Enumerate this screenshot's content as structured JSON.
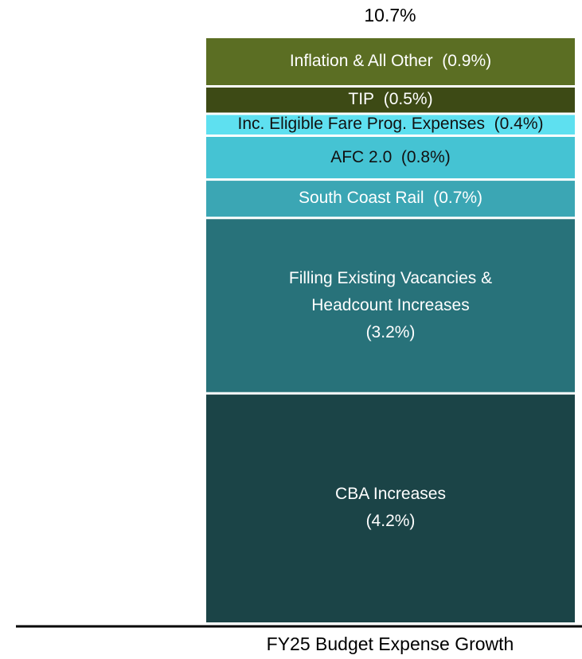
{
  "chart_data": {
    "type": "stacked_bar",
    "categories": [
      "FY25 Budget Expense Growth"
    ],
    "total_label": "10.7%",
    "ylim": [
      0,
      10.7
    ],
    "series": [
      {
        "name": "CBA Increases",
        "color": "#1b4447",
        "values": [
          4.2
        ],
        "value_labels": [
          "(4.2%)"
        ]
      },
      {
        "name": "Filling Existing Vacancies & Headcount Increases",
        "color": "#28727a",
        "values": [
          3.2
        ],
        "value_labels": [
          "(3.2%)"
        ]
      },
      {
        "name": "South Coast Rail",
        "color": "#3ba6b4",
        "values": [
          0.7
        ],
        "value_labels": [
          "(0.7%)"
        ]
      },
      {
        "name": "AFC 2.0",
        "color": "#45c3d3",
        "values": [
          0.8
        ],
        "value_labels": [
          "(0.8%)"
        ]
      },
      {
        "name": "Inc. Eligible Fare Prog. Expenses",
        "color": "#5ee0f0",
        "values": [
          0.4
        ],
        "value_labels": [
          "(0.4%)"
        ]
      },
      {
        "name": "TIP",
        "color": "#3d4a15",
        "values": [
          0.5
        ],
        "value_labels": [
          "(0.5%)"
        ]
      },
      {
        "name": "Inflation & All Other",
        "color": "#5b6e23",
        "values": [
          0.9
        ],
        "value_labels": [
          "(0.9%)"
        ]
      }
    ]
  }
}
